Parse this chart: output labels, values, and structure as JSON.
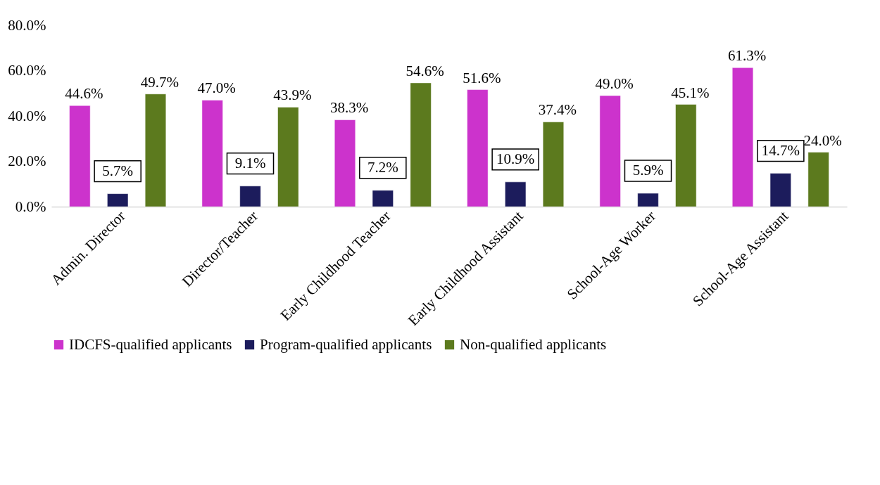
{
  "chart_data": {
    "type": "bar",
    "categories": [
      "Admin. Director",
      "Director/Teacher",
      "Early Childhood Teacher",
      "Early Childhood Assistant",
      "School-Age Worker",
      "School-Age Assistant"
    ],
    "series": [
      {
        "name": "IDCFS-qualified applicants",
        "color": "#cc33cc",
        "values": [
          44.6,
          47.0,
          38.3,
          51.6,
          49.0,
          61.3
        ],
        "value_labels": [
          "44.6%",
          "47.0%",
          "38.3%",
          "51.6%",
          "49.0%",
          "61.3%"
        ]
      },
      {
        "name": "Program-qualified applicants",
        "color": "#1c1c5c",
        "values": [
          5.7,
          9.1,
          7.2,
          10.9,
          5.9,
          14.7
        ],
        "value_labels": [
          "5.7%",
          "9.1%",
          "7.2%",
          "10.9%",
          "5.9%",
          "14.7%"
        ]
      },
      {
        "name": "Non-qualified applicants",
        "color": "#5c7a1e",
        "values": [
          49.7,
          43.9,
          54.6,
          37.4,
          45.1,
          24.0
        ],
        "value_labels": [
          "49.7%",
          "43.9%",
          "54.6%",
          "37.4%",
          "45.1%",
          "24.0%"
        ]
      }
    ],
    "ylim": [
      0,
      80
    ],
    "yticks": [
      {
        "value": 0,
        "label": "0.0%"
      },
      {
        "value": 20,
        "label": "20.0%"
      },
      {
        "value": 40,
        "label": "40.0%"
      },
      {
        "value": 60,
        "label": "60.0%"
      },
      {
        "value": 80,
        "label": "80.0%"
      }
    ],
    "grid": false,
    "legend": "bottom"
  }
}
